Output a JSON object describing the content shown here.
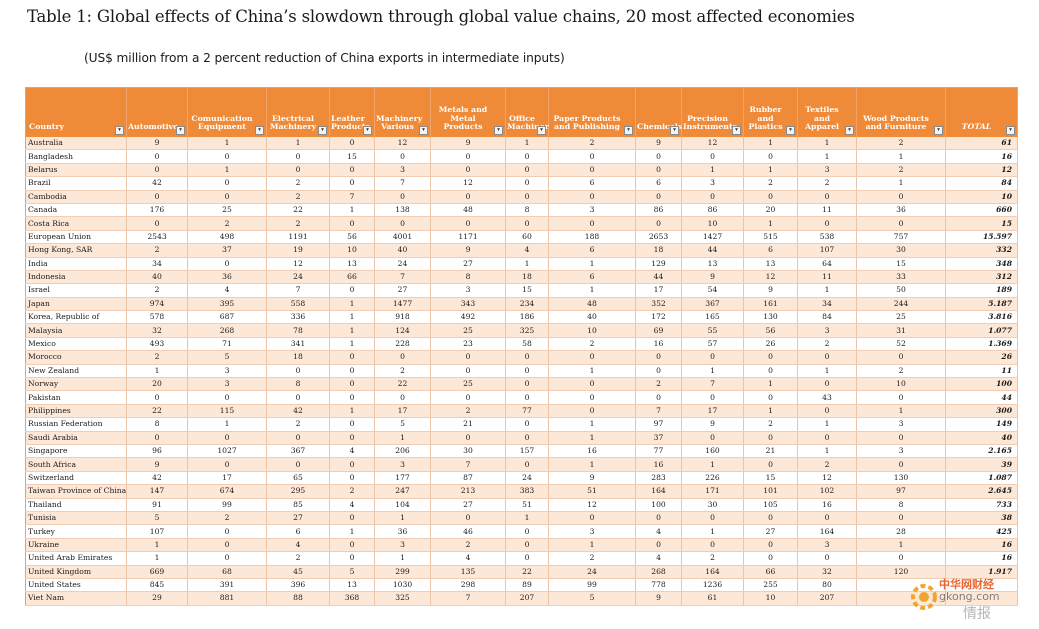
{
  "title": "Table 1: Global effects of China’s slowdown through global value chains, 20 most affected economies",
  "subtitle": "(US$ million from a 2 percent reduction of China exports in intermediate inputs)",
  "colors": {
    "header_bg": "#ef8a38",
    "band": "#fde7d6",
    "header_text": "#ffffff"
  },
  "dropdown_glyph": "▾",
  "columns": [
    {
      "key": "country",
      "label": "Country"
    },
    {
      "key": "automotive",
      "label": "Automotive"
    },
    {
      "key": "communication",
      "label": "Comunication Equipment"
    },
    {
      "key": "electrical",
      "label": "Electrical Machinery"
    },
    {
      "key": "leather",
      "label": "Leather Products"
    },
    {
      "key": "machinery",
      "label": "Machinery Various"
    },
    {
      "key": "metals",
      "label": "Metals and Metal Products"
    },
    {
      "key": "office",
      "label": "Office Machinery"
    },
    {
      "key": "paper",
      "label": "Paper Products and Publishing"
    },
    {
      "key": "chemicals",
      "label": "Chemicals"
    },
    {
      "key": "precision",
      "label": "Precision Instruments"
    },
    {
      "key": "rubber",
      "label": "Rubber and Plastics"
    },
    {
      "key": "textiles",
      "label": "Textiles and Apparel"
    },
    {
      "key": "wood",
      "label": "Wood Products and Furniture"
    },
    {
      "key": "total",
      "label": "TOTAL"
    }
  ],
  "rows": [
    [
      "Australia",
      "9",
      "1",
      "1",
      "0",
      "12",
      "9",
      "1",
      "2",
      "9",
      "12",
      "1",
      "1",
      "2",
      "61"
    ],
    [
      "Bangladesh",
      "0",
      "0",
      "0",
      "15",
      "0",
      "0",
      "0",
      "0",
      "0",
      "0",
      "0",
      "1",
      "1",
      "16"
    ],
    [
      "Belarus",
      "0",
      "1",
      "0",
      "0",
      "3",
      "0",
      "0",
      "0",
      "0",
      "1",
      "1",
      "3",
      "2",
      "12"
    ],
    [
      "Brazil",
      "42",
      "0",
      "2",
      "0",
      "7",
      "12",
      "0",
      "6",
      "6",
      "3",
      "2",
      "2",
      "1",
      "84"
    ],
    [
      "Cambodia",
      "0",
      "0",
      "2",
      "7",
      "0",
      "0",
      "0",
      "0",
      "0",
      "0",
      "0",
      "0",
      "0",
      "10"
    ],
    [
      "Canada",
      "176",
      "25",
      "22",
      "1",
      "138",
      "48",
      "8",
      "3",
      "86",
      "86",
      "20",
      "11",
      "36",
      "660"
    ],
    [
      "Costa Rica",
      "0",
      "2",
      "2",
      "0",
      "0",
      "0",
      "0",
      "0",
      "0",
      "10",
      "1",
      "0",
      "0",
      "15"
    ],
    [
      "European Union",
      "2543",
      "498",
      "1191",
      "56",
      "4001",
      "1171",
      "60",
      "188",
      "2653",
      "1427",
      "515",
      "538",
      "757",
      "15.597"
    ],
    [
      "Hong Kong, SAR",
      "2",
      "37",
      "19",
      "10",
      "40",
      "9",
      "4",
      "6",
      "18",
      "44",
      "6",
      "107",
      "30",
      "332"
    ],
    [
      "India",
      "34",
      "0",
      "12",
      "13",
      "24",
      "27",
      "1",
      "1",
      "129",
      "13",
      "13",
      "64",
      "15",
      "348"
    ],
    [
      "Indonesia",
      "40",
      "36",
      "24",
      "66",
      "7",
      "8",
      "18",
      "6",
      "44",
      "9",
      "12",
      "11",
      "33",
      "312"
    ],
    [
      "Israel",
      "2",
      "4",
      "7",
      "0",
      "27",
      "3",
      "15",
      "1",
      "17",
      "54",
      "9",
      "1",
      "50",
      "189"
    ],
    [
      "Japan",
      "974",
      "395",
      "558",
      "1",
      "1477",
      "343",
      "234",
      "48",
      "352",
      "367",
      "161",
      "34",
      "244",
      "5.187"
    ],
    [
      "Korea, Republic of",
      "578",
      "687",
      "336",
      "1",
      "918",
      "492",
      "186",
      "40",
      "172",
      "165",
      "130",
      "84",
      "25",
      "3.816"
    ],
    [
      "Malaysia",
      "32",
      "268",
      "78",
      "1",
      "124",
      "25",
      "325",
      "10",
      "69",
      "55",
      "56",
      "3",
      "31",
      "1.077"
    ],
    [
      "Mexico",
      "493",
      "71",
      "341",
      "1",
      "228",
      "23",
      "58",
      "2",
      "16",
      "57",
      "26",
      "2",
      "52",
      "1.369"
    ],
    [
      "Morocco",
      "2",
      "5",
      "18",
      "0",
      "0",
      "0",
      "0",
      "0",
      "0",
      "0",
      "0",
      "0",
      "0",
      "26"
    ],
    [
      "New Zealand",
      "1",
      "3",
      "0",
      "0",
      "2",
      "0",
      "0",
      "1",
      "0",
      "1",
      "0",
      "1",
      "2",
      "11"
    ],
    [
      "Norway",
      "20",
      "3",
      "8",
      "0",
      "22",
      "25",
      "0",
      "0",
      "2",
      "7",
      "1",
      "0",
      "10",
      "100"
    ],
    [
      "Pakistan",
      "0",
      "0",
      "0",
      "0",
      "0",
      "0",
      "0",
      "0",
      "0",
      "0",
      "0",
      "43",
      "0",
      "44"
    ],
    [
      "Philippines",
      "22",
      "115",
      "42",
      "1",
      "17",
      "2",
      "77",
      "0",
      "7",
      "17",
      "1",
      "0",
      "1",
      "300"
    ],
    [
      "Russian Federation",
      "8",
      "1",
      "2",
      "0",
      "5",
      "21",
      "0",
      "1",
      "97",
      "9",
      "2",
      "1",
      "3",
      "149"
    ],
    [
      "Saudi Arabia",
      "0",
      "0",
      "0",
      "0",
      "1",
      "0",
      "0",
      "1",
      "37",
      "0",
      "0",
      "0",
      "0",
      "40"
    ],
    [
      "Singapore",
      "96",
      "1027",
      "367",
      "4",
      "206",
      "30",
      "157",
      "16",
      "77",
      "160",
      "21",
      "1",
      "3",
      "2.165"
    ],
    [
      "South Africa",
      "9",
      "0",
      "0",
      "0",
      "3",
      "7",
      "0",
      "1",
      "16",
      "1",
      "0",
      "2",
      "0",
      "39"
    ],
    [
      "Switzerland",
      "42",
      "17",
      "65",
      "0",
      "177",
      "87",
      "24",
      "9",
      "283",
      "226",
      "15",
      "12",
      "130",
      "1.087"
    ],
    [
      "Taiwan Province of China",
      "147",
      "674",
      "295",
      "2",
      "247",
      "213",
      "383",
      "51",
      "164",
      "171",
      "101",
      "102",
      "97",
      "2.645"
    ],
    [
      "Thailand",
      "91",
      "99",
      "85",
      "4",
      "104",
      "27",
      "51",
      "12",
      "100",
      "30",
      "105",
      "16",
      "8",
      "733"
    ],
    [
      "Tunisia",
      "5",
      "2",
      "27",
      "0",
      "1",
      "0",
      "1",
      "0",
      "0",
      "0",
      "0",
      "0",
      "0",
      "38"
    ],
    [
      "Turkey",
      "107",
      "0",
      "6",
      "1",
      "36",
      "46",
      "0",
      "3",
      "4",
      "1",
      "27",
      "164",
      "28",
      "425"
    ],
    [
      "Ukraine",
      "1",
      "0",
      "4",
      "0",
      "3",
      "2",
      "0",
      "1",
      "0",
      "0",
      "0",
      "3",
      "1",
      "16"
    ],
    [
      "United Arab Emirates",
      "1",
      "0",
      "2",
      "0",
      "1",
      "4",
      "0",
      "2",
      "4",
      "2",
      "0",
      "0",
      "0",
      "16"
    ],
    [
      "United Kingdom",
      "669",
      "68",
      "45",
      "5",
      "299",
      "135",
      "22",
      "24",
      "268",
      "164",
      "66",
      "32",
      "120",
      "1.917"
    ],
    [
      "United States",
      "845",
      "391",
      "396",
      "13",
      "1030",
      "298",
      "89",
      "99",
      "778",
      "1236",
      "255",
      "80",
      "",
      ""
    ],
    [
      "Viet Nam",
      "29",
      "881",
      "88",
      "368",
      "325",
      "7",
      "207",
      "5",
      "9",
      "61",
      "10",
      "207",
      "",
      ""
    ]
  ],
  "watermark": {
    "line1": "中华网财经",
    "line2": "gkong.com",
    "line3": "情报"
  }
}
